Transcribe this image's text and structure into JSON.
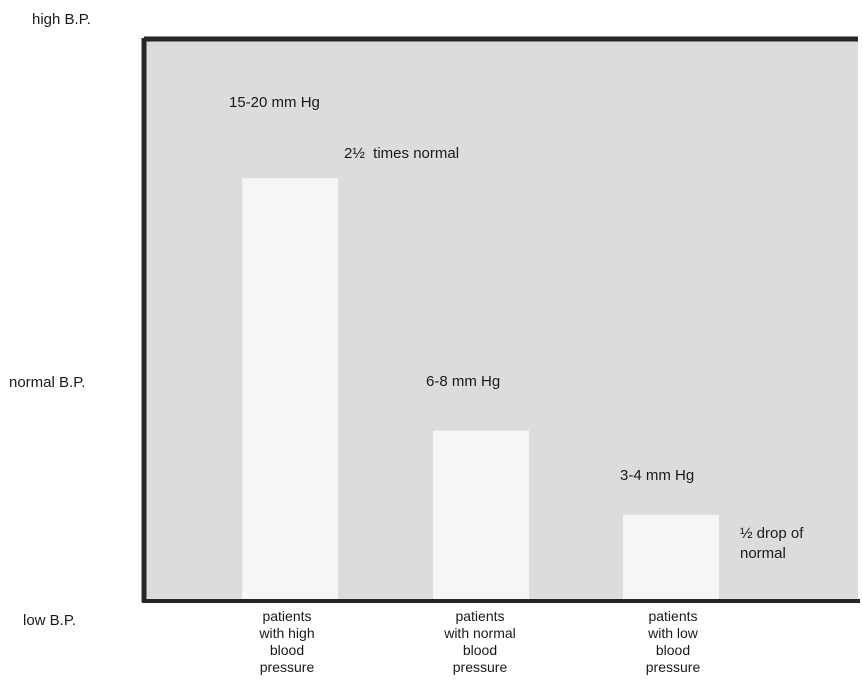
{
  "chart_data": {
    "type": "bar",
    "title": "",
    "xlabel": "",
    "ylabel": "",
    "y_axis_labels": [
      "high B.P.",
      "normal B.P.",
      "low B.P."
    ],
    "categories": [
      [
        "patients",
        "with high",
        "blood",
        "pressure"
      ],
      [
        "patients",
        "with normal",
        "blood",
        "pressure"
      ],
      [
        "patients",
        "with low",
        "blood",
        "pressure"
      ]
    ],
    "values": [
      17.5,
      7,
      3.5
    ],
    "value_labels": [
      "15-20 mm Hg",
      "6-8 mm Hg",
      "3-4 mm Hg"
    ],
    "annotations": [
      {
        "text": "2½  times normal"
      },
      {
        "text": "½ drop of normal"
      }
    ],
    "ylim": [
      0,
      20
    ],
    "grid": false,
    "colors": {
      "plot_background": "#dcdcdc",
      "bar_fill": "#f6f6f6",
      "frame": "#262626"
    }
  }
}
